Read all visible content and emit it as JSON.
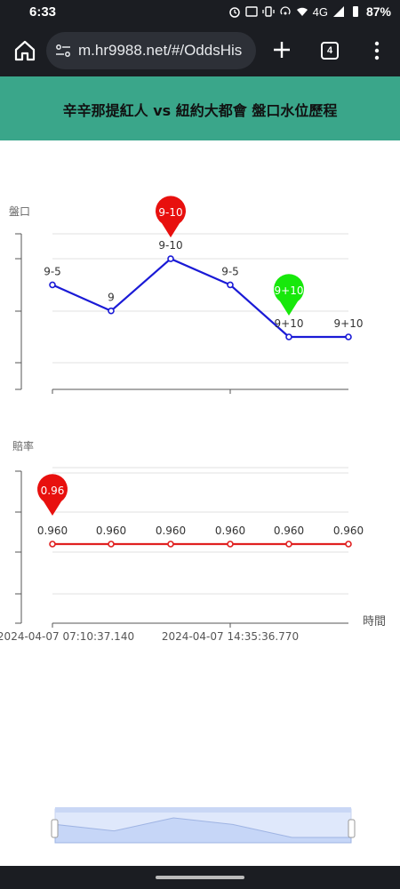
{
  "status_bar": {
    "time": "6:33",
    "network": "4G",
    "battery": "87%"
  },
  "browser": {
    "url": "m.hr9988.net/#/OddsHis",
    "tab_count": "4"
  },
  "page": {
    "title": "辛辛那提紅人 vs 紐約大都會 盤口水位歷程"
  },
  "chart_data": [
    {
      "type": "line",
      "ylabel": "盤口",
      "point_labels": [
        "9-5",
        "9",
        "9-10",
        "9-5",
        "9+10",
        "9+10"
      ],
      "values": [
        2,
        1,
        3,
        2,
        0,
        0
      ],
      "marker_high": "9-10",
      "marker_low": "9+10",
      "series_color": "#1a1ad6",
      "marker_high_color": "#e8100e",
      "marker_low_color": "#17e80b"
    },
    {
      "type": "line",
      "ylabel": "賠率",
      "xlabel": "時間",
      "x_tick_labels": [
        "2024-04-07 07:10:37.140",
        "2024-04-07 14:35:36.770"
      ],
      "point_labels": [
        "0.960",
        "0.960",
        "0.960",
        "0.960",
        "0.960",
        "0.960"
      ],
      "values": [
        0.96,
        0.96,
        0.96,
        0.96,
        0.96,
        0.96
      ],
      "marker_high": "0.96",
      "series_color": "#e02020",
      "marker_high_color": "#e8100e"
    }
  ],
  "slider": {
    "series_values": [
      2,
      1,
      3,
      2,
      0,
      0
    ]
  }
}
